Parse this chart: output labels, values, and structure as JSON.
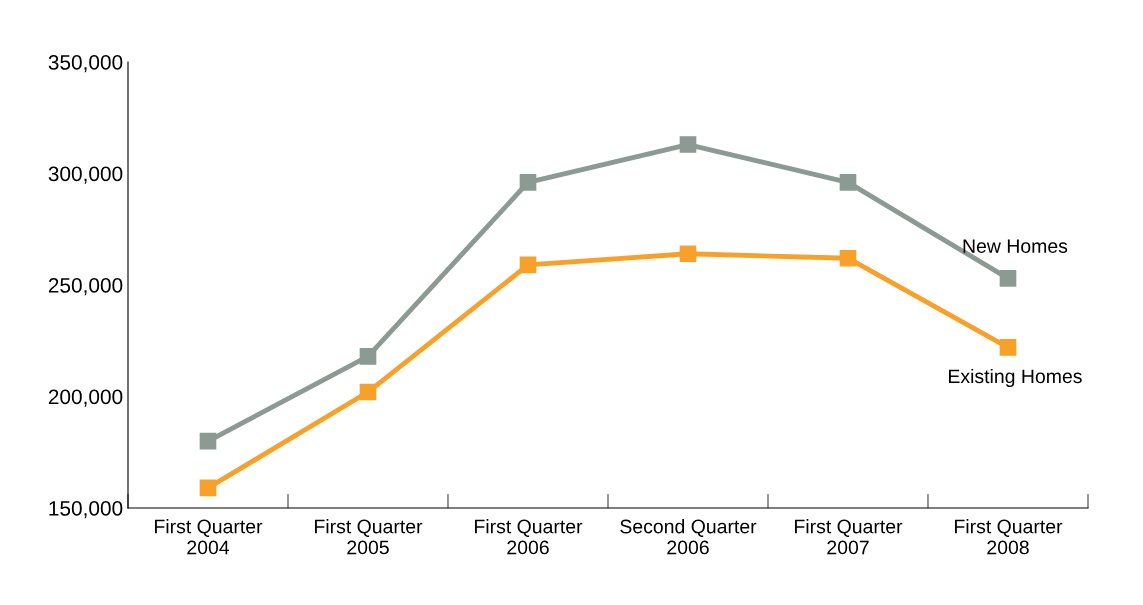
{
  "chart_data": {
    "type": "line",
    "categories": [
      "First Quarter\n2004",
      "First Quarter\n2005",
      "First Quarter\n2006",
      "Second Quarter\n2006",
      "First Quarter\n2007",
      "First Quarter\n2008"
    ],
    "series": [
      {
        "name": "New Homes",
        "color": "#8c9a94",
        "values": [
          180000,
          218000,
          296000,
          313000,
          296000,
          253000
        ]
      },
      {
        "name": "Existing Homes",
        "color": "#f7a12a",
        "values": [
          159000,
          202000,
          259000,
          264000,
          262000,
          222000
        ]
      }
    ],
    "ylim": [
      150000,
      350000
    ],
    "yticks": [
      {
        "value": 150000,
        "label": "150,000"
      },
      {
        "value": 200000,
        "label": "200,000"
      },
      {
        "value": 250000,
        "label": "250,000"
      },
      {
        "value": 300000,
        "label": "300,000"
      },
      {
        "value": 350000,
        "label": "350,000"
      }
    ],
    "marker": "square",
    "line_style": "solid",
    "grid": false,
    "legend": false
  }
}
